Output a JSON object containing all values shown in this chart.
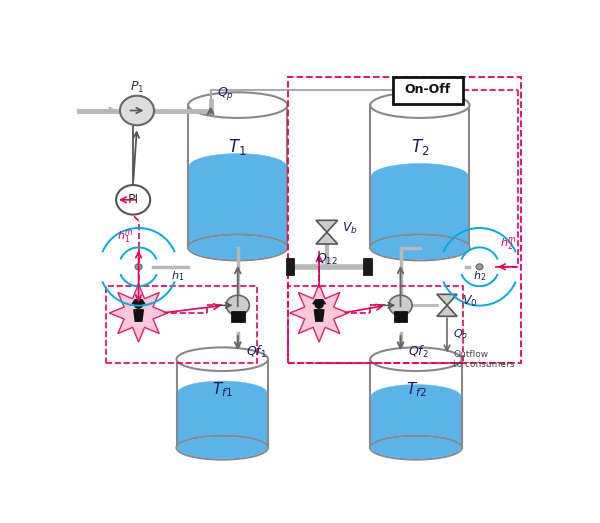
{
  "bg_color": "#ffffff",
  "tank_color": "#5ab4ea",
  "tank_edge": "#888888",
  "pipe_color": "#b8b8b8",
  "red": "#e8005a",
  "dark_blue": "#1a1a66",
  "cyan": "#00aadd",
  "T1_label": "$T_1$",
  "T2_label": "$T_2$",
  "Tf1_label": "$T_{f1}$",
  "Tf2_label": "$T_{f2}$"
}
